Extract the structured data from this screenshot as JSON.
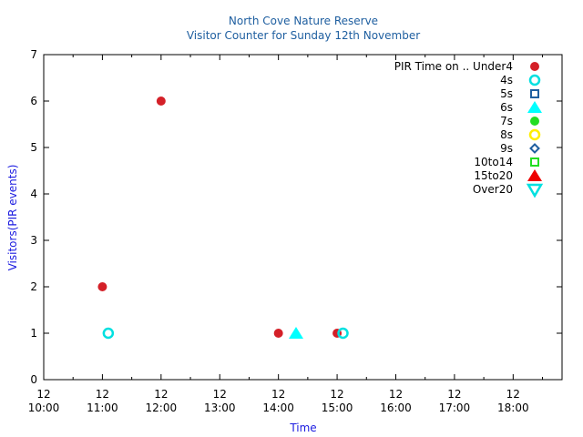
{
  "chart_data": {
    "type": "scatter",
    "title": "North Cove Nature Reserve",
    "subtitle": "Visitor Counter for Sunday 12th November",
    "xlabel": "Time",
    "ylabel": "Visitors(PIR events)",
    "x_range": [
      "10:00",
      "18:50"
    ],
    "ylim": [
      0,
      7
    ],
    "y_ticks": [
      0,
      1,
      2,
      3,
      4,
      5,
      6,
      7
    ],
    "x_ticks": [
      {
        "day": "12",
        "time": "10:00"
      },
      {
        "day": "12",
        "time": "11:00"
      },
      {
        "day": "12",
        "time": "12:00"
      },
      {
        "day": "12",
        "time": "13:00"
      },
      {
        "day": "12",
        "time": "14:00"
      },
      {
        "day": "12",
        "time": "15:00"
      },
      {
        "day": "12",
        "time": "16:00"
      },
      {
        "day": "12",
        "time": "17:00"
      },
      {
        "day": "12",
        "time": "18:00"
      }
    ],
    "grid": false,
    "legend_position": "top-right",
    "legend_title": "PIR Time on ..",
    "series": [
      {
        "name": "Under4",
        "marker": "filled-circle",
        "color": "#d42028",
        "points": [
          {
            "x": "11:00",
            "y": 2
          },
          {
            "x": "12:00",
            "y": 6
          },
          {
            "x": "14:00",
            "y": 1
          },
          {
            "x": "15:00",
            "y": 1
          }
        ]
      },
      {
        "name": "4s",
        "marker": "open-circle",
        "color": "#00e0e0",
        "points": [
          {
            "x": "11:06",
            "y": 1
          },
          {
            "x": "15:06",
            "y": 1
          }
        ]
      },
      {
        "name": "5s",
        "marker": "open-square",
        "color": "#1f5fa0",
        "points": []
      },
      {
        "name": "6s",
        "marker": "filled-triangle",
        "color": "#00ffff",
        "points": [
          {
            "x": "14:18",
            "y": 1
          }
        ]
      },
      {
        "name": "7s",
        "marker": "filled-circle",
        "color": "#22dd22",
        "points": []
      },
      {
        "name": "8s",
        "marker": "open-circle",
        "color": "#ffee00",
        "points": []
      },
      {
        "name": "9s",
        "marker": "open-diamond",
        "color": "#1f5fa0",
        "points": []
      },
      {
        "name": "10to14",
        "marker": "open-square",
        "color": "#22dd22",
        "points": []
      },
      {
        "name": "15to20",
        "marker": "filled-triangle",
        "color": "#ee0000",
        "points": []
      },
      {
        "name": "Over20",
        "marker": "open-triangle-down",
        "color": "#00e0e0",
        "points": []
      }
    ]
  }
}
